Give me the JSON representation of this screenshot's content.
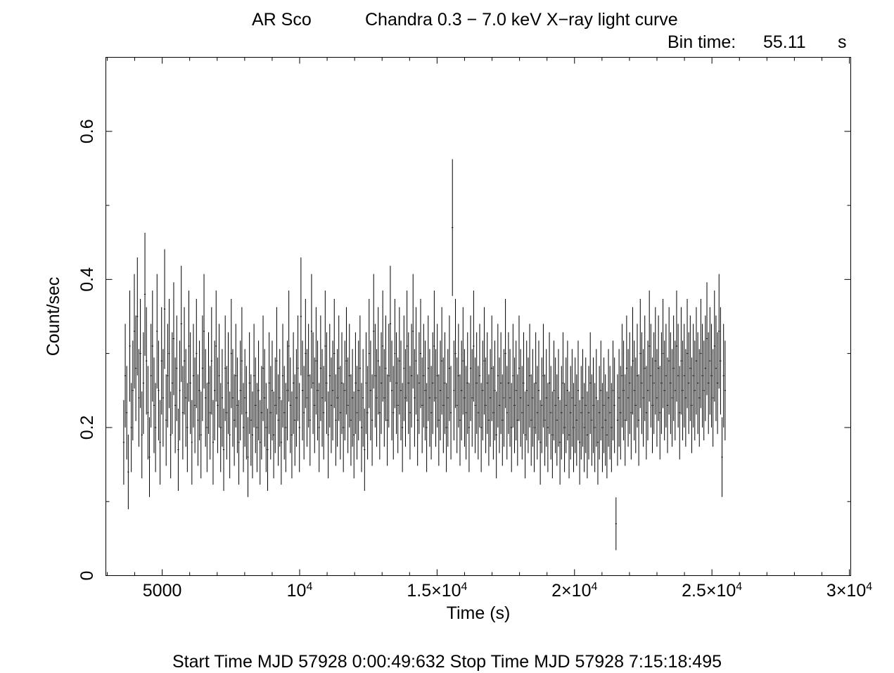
{
  "header": {
    "object": "AR Sco",
    "title": "Chandra 0.3 − 7.0 keV X−ray light curve",
    "bin_label": "Bin time:",
    "bin_value": "55.11",
    "bin_unit": "s"
  },
  "footer": {
    "text": "Start Time MJD 57928  0:00:49:632  Stop Time MJD 57928  7:15:18:495"
  },
  "chart_data": {
    "type": "scatter",
    "style": "error-bars",
    "xlabel": "Time (s)",
    "ylabel": "Count/sec",
    "xlim": [
      2950,
      30050
    ],
    "ylim": [
      0,
      0.7
    ],
    "bin_time": 55.11,
    "x_ticks": [
      {
        "value": 5000,
        "mant": "5000",
        "exp": ""
      },
      {
        "value": 10000,
        "mant": "10",
        "exp": "4"
      },
      {
        "value": 15000,
        "mant": "1.5×10",
        "exp": "4"
      },
      {
        "value": 20000,
        "mant": "2×10",
        "exp": "4"
      },
      {
        "value": 25000,
        "mant": "2.5×10",
        "exp": "4"
      },
      {
        "value": 30000,
        "mant": "3×10",
        "exp": "4"
      }
    ],
    "y_ticks": [
      {
        "value": 0,
        "label": "0"
      },
      {
        "value": 0.2,
        "label": "0.2"
      },
      {
        "value": 0.4,
        "label": "0.4"
      },
      {
        "value": 0.6,
        "label": "0.6"
      }
    ],
    "grid": false,
    "series": [
      {
        "x_start": 3600,
        "x_step": 55.11,
        "values": [
          0.18,
          0.27,
          0.22,
          0.14,
          0.31,
          0.2,
          0.25,
          0.33,
          0.28,
          0.35,
          0.24,
          0.3,
          0.19,
          0.26,
          0.38,
          0.29,
          0.22,
          0.16,
          0.27,
          0.31,
          0.23,
          0.2,
          0.33,
          0.25,
          0.18,
          0.29,
          0.24,
          0.36,
          0.21,
          0.27,
          0.3,
          0.19,
          0.26,
          0.32,
          0.23,
          0.28,
          0.17,
          0.25,
          0.34,
          0.22,
          0.29,
          0.24,
          0.2,
          0.31,
          0.26,
          0.18,
          0.27,
          0.23,
          0.3,
          0.21,
          0.25,
          0.19,
          0.28,
          0.33,
          0.24,
          0.2,
          0.26,
          0.22,
          0.29,
          0.18,
          0.25,
          0.31,
          0.23,
          0.27,
          0.2,
          0.24,
          0.17,
          0.28,
          0.22,
          0.26,
          0.19,
          0.3,
          0.24,
          0.21,
          0.27,
          0.23,
          0.18,
          0.25,
          0.29,
          0.2,
          0.24,
          0.22,
          0.16,
          0.26,
          0.21,
          0.19,
          0.27,
          0.23,
          0.2,
          0.25,
          0.18,
          0.22,
          0.28,
          0.24,
          0.2,
          0.17,
          0.26,
          0.22,
          0.25,
          0.19,
          0.23,
          0.29,
          0.21,
          0.24,
          0.18,
          0.27,
          0.22,
          0.2,
          0.25,
          0.31,
          0.23,
          0.19,
          0.26,
          0.21,
          0.24,
          0.28,
          0.2,
          0.35,
          0.25,
          0.22,
          0.3,
          0.24,
          0.27,
          0.21,
          0.33,
          0.26,
          0.23,
          0.29,
          0.25,
          0.2,
          0.28,
          0.24,
          0.22,
          0.31,
          0.26,
          0.19,
          0.27,
          0.23,
          0.25,
          0.3,
          0.21,
          0.24,
          0.28,
          0.22,
          0.26,
          0.2,
          0.25,
          0.29,
          0.23,
          0.27,
          0.21,
          0.24,
          0.19,
          0.26,
          0.22,
          0.25,
          0.28,
          0.2,
          0.24,
          0.17,
          0.26,
          0.22,
          0.3,
          0.25,
          0.21,
          0.33,
          0.27,
          0.24,
          0.29,
          0.22,
          0.26,
          0.31,
          0.24,
          0.28,
          0.21,
          0.27,
          0.34,
          0.25,
          0.22,
          0.3,
          0.26,
          0.23,
          0.29,
          0.25,
          0.2,
          0.28,
          0.24,
          0.31,
          0.26,
          0.22,
          0.27,
          0.33,
          0.24,
          0.29,
          0.21,
          0.26,
          0.3,
          0.23,
          0.27,
          0.25,
          0.2,
          0.28,
          0.24,
          0.22,
          0.26,
          0.31,
          0.24,
          0.27,
          0.21,
          0.25,
          0.29,
          0.23,
          0.26,
          0.2,
          0.24,
          0.28,
          0.22,
          0.47,
          0.25,
          0.3,
          0.23,
          0.27,
          0.21,
          0.25,
          0.29,
          0.24,
          0.22,
          0.26,
          0.2,
          0.28,
          0.24,
          0.31,
          0.23,
          0.26,
          0.22,
          0.27,
          0.2,
          0.25,
          0.29,
          0.23,
          0.26,
          0.21,
          0.24,
          0.28,
          0.22,
          0.25,
          0.19,
          0.27,
          0.23,
          0.26,
          0.21,
          0.24,
          0.3,
          0.22,
          0.26,
          0.24,
          0.2,
          0.27,
          0.23,
          0.25,
          0.21,
          0.28,
          0.24,
          0.22,
          0.26,
          0.19,
          0.25,
          0.23,
          0.27,
          0.21,
          0.24,
          0.2,
          0.26,
          0.22,
          0.25,
          0.18,
          0.23,
          0.27,
          0.21,
          0.24,
          0.2,
          0.26,
          0.22,
          0.19,
          0.25,
          0.23,
          0.21,
          0.24,
          0.18,
          0.22,
          0.26,
          0.2,
          0.23,
          0.25,
          0.19,
          0.22,
          0.24,
          0.2,
          0.23,
          0.21,
          0.25,
          0.18,
          0.22,
          0.24,
          0.2,
          0.23,
          0.19,
          0.22,
          0.26,
          0.21,
          0.23,
          0.2,
          0.24,
          0.18,
          0.22,
          0.25,
          0.2,
          0.23,
          0.21,
          0.19,
          0.24,
          0.22,
          0.2,
          0.25,
          0.23,
          0.07,
          0.21,
          0.24,
          0.22,
          0.27,
          0.25,
          0.21,
          0.28,
          0.24,
          0.26,
          0.22,
          0.29,
          0.25,
          0.23,
          0.27,
          0.21,
          0.3,
          0.26,
          0.24,
          0.28,
          0.22,
          0.25,
          0.31,
          0.27,
          0.23,
          0.26,
          0.29,
          0.24,
          0.28,
          0.22,
          0.26,
          0.3,
          0.25,
          0.27,
          0.23,
          0.29,
          0.26,
          0.24,
          0.28,
          0.25,
          0.31,
          0.27,
          0.22,
          0.29,
          0.25,
          0.27,
          0.24,
          0.3,
          0.26,
          0.28,
          0.23,
          0.27,
          0.25,
          0.29,
          0.26,
          0.24,
          0.3,
          0.27,
          0.25,
          0.28,
          0.32,
          0.26,
          0.29,
          0.27,
          0.24,
          0.31,
          0.28,
          0.26,
          0.33,
          0.29,
          0.16,
          0.27,
          0.25
        ]
      }
    ]
  }
}
